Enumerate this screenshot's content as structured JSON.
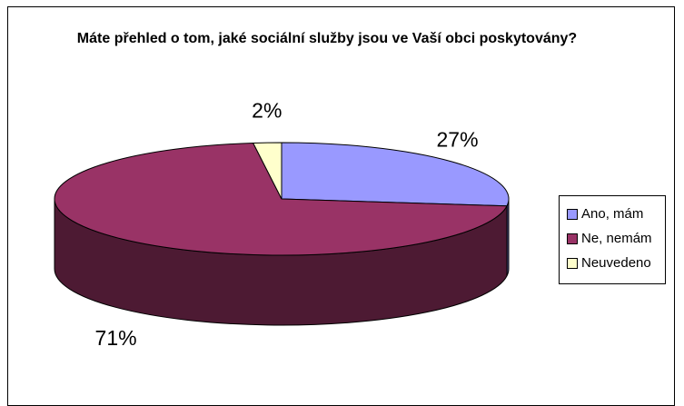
{
  "chart_data": {
    "type": "pie",
    "title": "Máte přehled o tom, jaké sociální služby jsou ve Vaší obci poskytovány?",
    "categories": [
      "Ano, mám",
      "Ne, nemám",
      "Neuvedeno"
    ],
    "values": [
      27,
      71,
      2
    ],
    "data_labels": [
      "27%",
      "71%",
      "2%"
    ],
    "colors": [
      "#9999ff",
      "#993366",
      "#ffffcc"
    ],
    "side_colors": [
      "#4d4d80",
      "#4d1a33",
      "#80806a"
    ],
    "legend_position": "right",
    "style": "3d"
  }
}
